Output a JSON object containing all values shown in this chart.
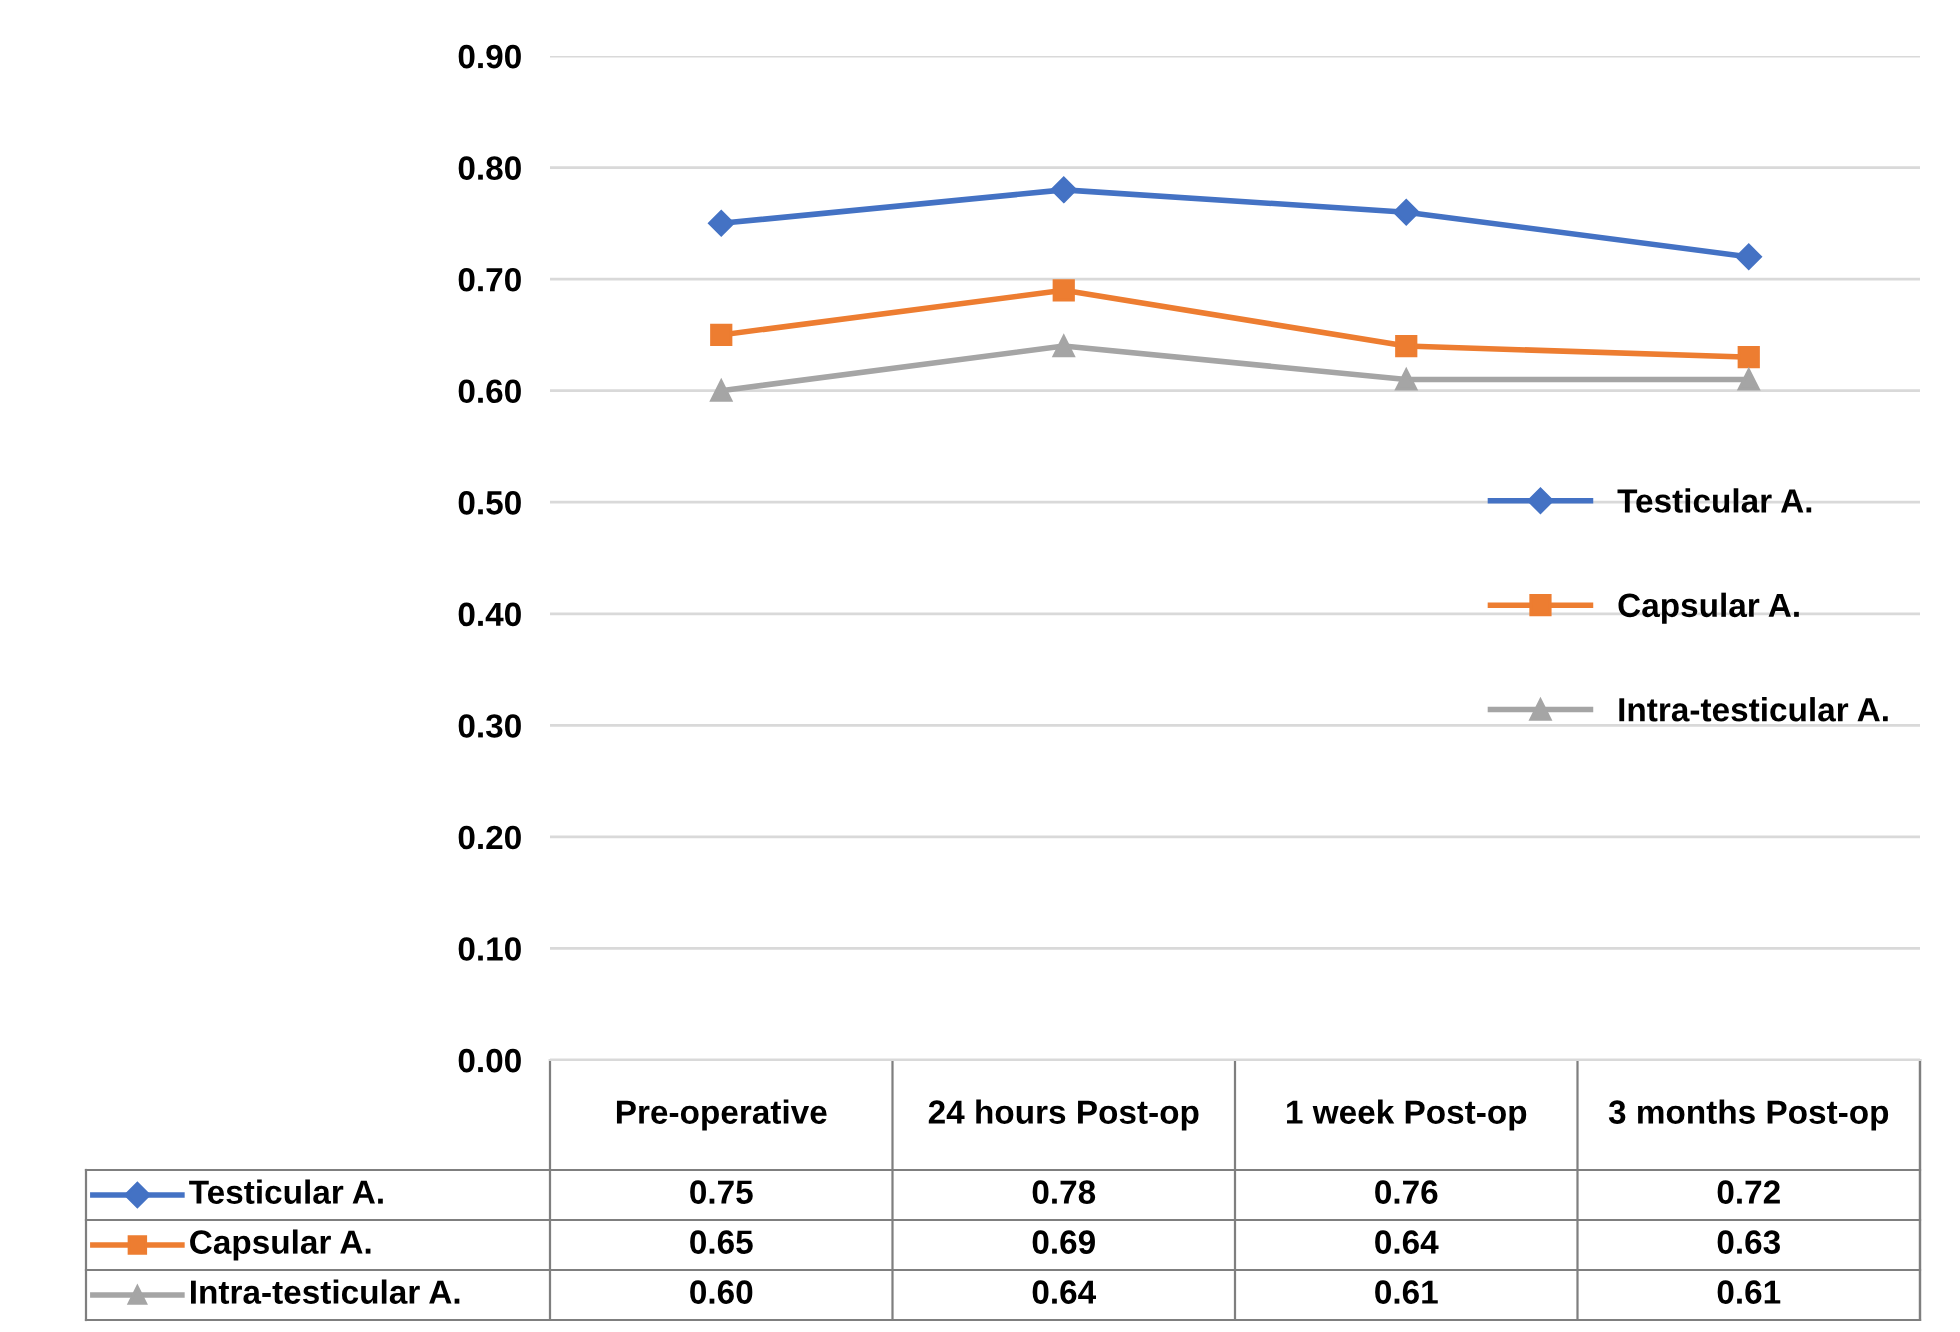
{
  "chart_data": {
    "type": "line",
    "categories": [
      "Pre-operative",
      "24 hours Post-op",
      "1 week Post-op",
      "3 months Post-op"
    ],
    "series": [
      {
        "name": "Testicular A.",
        "color": "#4472c4",
        "marker": "diamond",
        "values": [
          0.75,
          0.78,
          0.76,
          0.72
        ],
        "value_labels": [
          "0.75",
          "0.78",
          "0.76",
          "0.72"
        ]
      },
      {
        "name": "Capsular A.",
        "color": "#ed7d31",
        "marker": "square",
        "values": [
          0.65,
          0.69,
          0.64,
          0.63
        ],
        "value_labels": [
          "0.65",
          "0.69",
          "0.64",
          "0.63"
        ]
      },
      {
        "name": "Intra-testicular A.",
        "color": "#a5a5a5",
        "marker": "triangle",
        "values": [
          0.6,
          0.64,
          0.61,
          0.61
        ],
        "value_labels": [
          "0.60",
          "0.64",
          "0.61",
          "0.61"
        ]
      }
    ],
    "ylim": [
      0,
      0.9
    ],
    "yticks": [
      {
        "value": 0,
        "label": "0.00"
      },
      {
        "value": 0.1,
        "label": "0.10"
      },
      {
        "value": 0.2,
        "label": "0.20"
      },
      {
        "value": 0.3,
        "label": "0.30"
      },
      {
        "value": 0.4,
        "label": "0.40"
      },
      {
        "value": 0.5,
        "label": "0.50"
      },
      {
        "value": 0.6,
        "label": "0.60"
      },
      {
        "value": 0.7,
        "label": "0.70"
      },
      {
        "value": 0.8,
        "label": "0.80"
      },
      {
        "value": 0.9,
        "label": "0.90"
      }
    ],
    "grid": "y",
    "legend": "center right",
    "line_style": "solid"
  }
}
